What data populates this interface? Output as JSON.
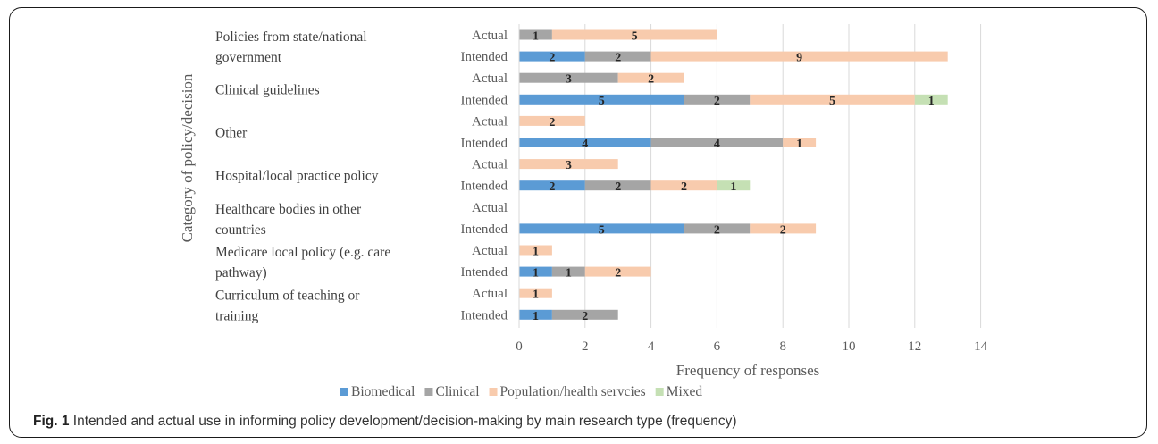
{
  "chart_data": {
    "type": "bar",
    "orientation": "horizontal",
    "stacked": true,
    "ylabel": "Category of policy/decision",
    "xlabel": "Frequency of responses",
    "xlim": [
      0,
      14
    ],
    "xticks": [
      0,
      2,
      4,
      6,
      8,
      10,
      12,
      14
    ],
    "grid": true,
    "legend_position": "bottom",
    "colors": {
      "Biomedical": "#5b9bd5",
      "Clinical": "#a5a5a5",
      "Population/health servcies": "#f8cbad",
      "Mixed": "#c5e0b4"
    },
    "series_names": [
      "Biomedical",
      "Clinical",
      "Population/health servcies",
      "Mixed"
    ],
    "groups": [
      {
        "name": "Policies from state/national government",
        "name_lines": [
          "Policies from state/national",
          "government"
        ],
        "bars": [
          {
            "label": "Actual",
            "values": [
              0,
              1,
              5,
              0
            ]
          },
          {
            "label": "Intended",
            "values": [
              2,
              2,
              9,
              0
            ]
          }
        ]
      },
      {
        "name": "Clinical guidelines",
        "name_lines": [
          "Clinical guidelines"
        ],
        "bars": [
          {
            "label": "Actual",
            "values": [
              0,
              3,
              2,
              0
            ]
          },
          {
            "label": "Intended",
            "values": [
              5,
              2,
              5,
              1
            ]
          }
        ]
      },
      {
        "name": "Other",
        "name_lines": [
          "Other"
        ],
        "bars": [
          {
            "label": "Actual",
            "values": [
              0,
              0,
              2,
              0
            ]
          },
          {
            "label": "Intended",
            "values": [
              4,
              4,
              1,
              0
            ]
          }
        ]
      },
      {
        "name": "Hospital/local practice policy",
        "name_lines": [
          "Hospital/local practice policy"
        ],
        "bars": [
          {
            "label": "Actual",
            "values": [
              0,
              0,
              3,
              0
            ]
          },
          {
            "label": "Intended",
            "values": [
              2,
              2,
              2,
              1
            ]
          }
        ]
      },
      {
        "name": "Healthcare bodies in other countries",
        "name_lines": [
          "Healthcare bodies in other",
          "countries"
        ],
        "bars": [
          {
            "label": "Actual",
            "values": [
              0,
              0,
              0,
              0
            ]
          },
          {
            "label": "Intended",
            "values": [
              5,
              2,
              2,
              0
            ]
          }
        ]
      },
      {
        "name": "Medicare local policy (e.g. care pathway)",
        "name_lines": [
          "Medicare local policy (e.g. care",
          "pathway)"
        ],
        "bars": [
          {
            "label": "Actual",
            "values": [
              0,
              0,
              1,
              0
            ]
          },
          {
            "label": "Intended",
            "values": [
              1,
              1,
              2,
              0
            ]
          }
        ]
      },
      {
        "name": "Curriculum of teaching or training",
        "name_lines": [
          "Curriculum of teaching or",
          "training"
        ],
        "bars": [
          {
            "label": "Actual",
            "values": [
              0,
              0,
              1,
              0
            ]
          },
          {
            "label": "Intended",
            "values": [
              1,
              2,
              0,
              0
            ]
          }
        ]
      }
    ]
  },
  "caption": {
    "label": "Fig. 1",
    "text": "Intended and actual use in informing policy development/decision-making by main research type (frequency)"
  }
}
